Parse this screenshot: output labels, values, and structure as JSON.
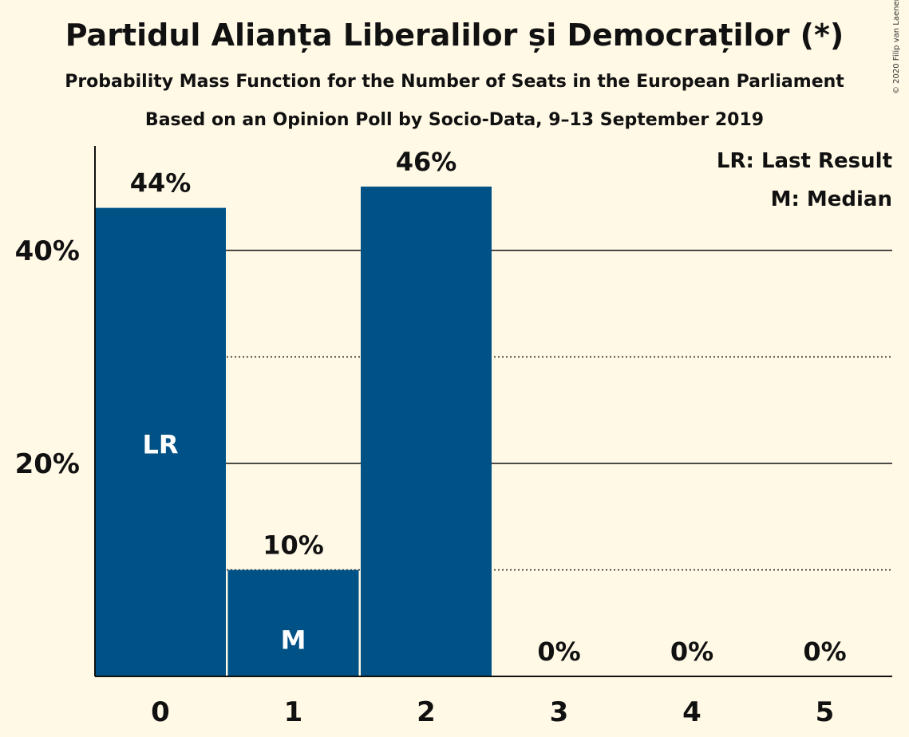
{
  "title": "Partidul Alianța Liberalilor și Democraților (*)",
  "subtitle": "Probability Mass Function for the Number of Seats in the European Parliament",
  "subtitle2": "Based on an Opinion Poll by Socio-Data, 9–13 September 2019",
  "copyright": "© 2020 Filip van Laenen",
  "legend": {
    "last_result": "LR: Last Result",
    "median": "M: Median",
    "placement": "top-right"
  },
  "colors": {
    "bar": "#005185",
    "background": "#fff9e6"
  },
  "chart_data": {
    "type": "bar",
    "categories": [
      "0",
      "1",
      "2",
      "3",
      "4",
      "5"
    ],
    "values": [
      44,
      10,
      46,
      0,
      0,
      0
    ],
    "value_labels": [
      "44%",
      "10%",
      "46%",
      "0%",
      "0%",
      "0%"
    ],
    "bar_marks": [
      "LR",
      "M",
      "",
      "",
      "",
      ""
    ],
    "y_ticks": [
      20,
      40
    ],
    "y_tick_labels": [
      "20%",
      "40%"
    ],
    "minor_gridlines": [
      10,
      30
    ],
    "ylim": [
      0,
      50
    ],
    "grid": true
  }
}
